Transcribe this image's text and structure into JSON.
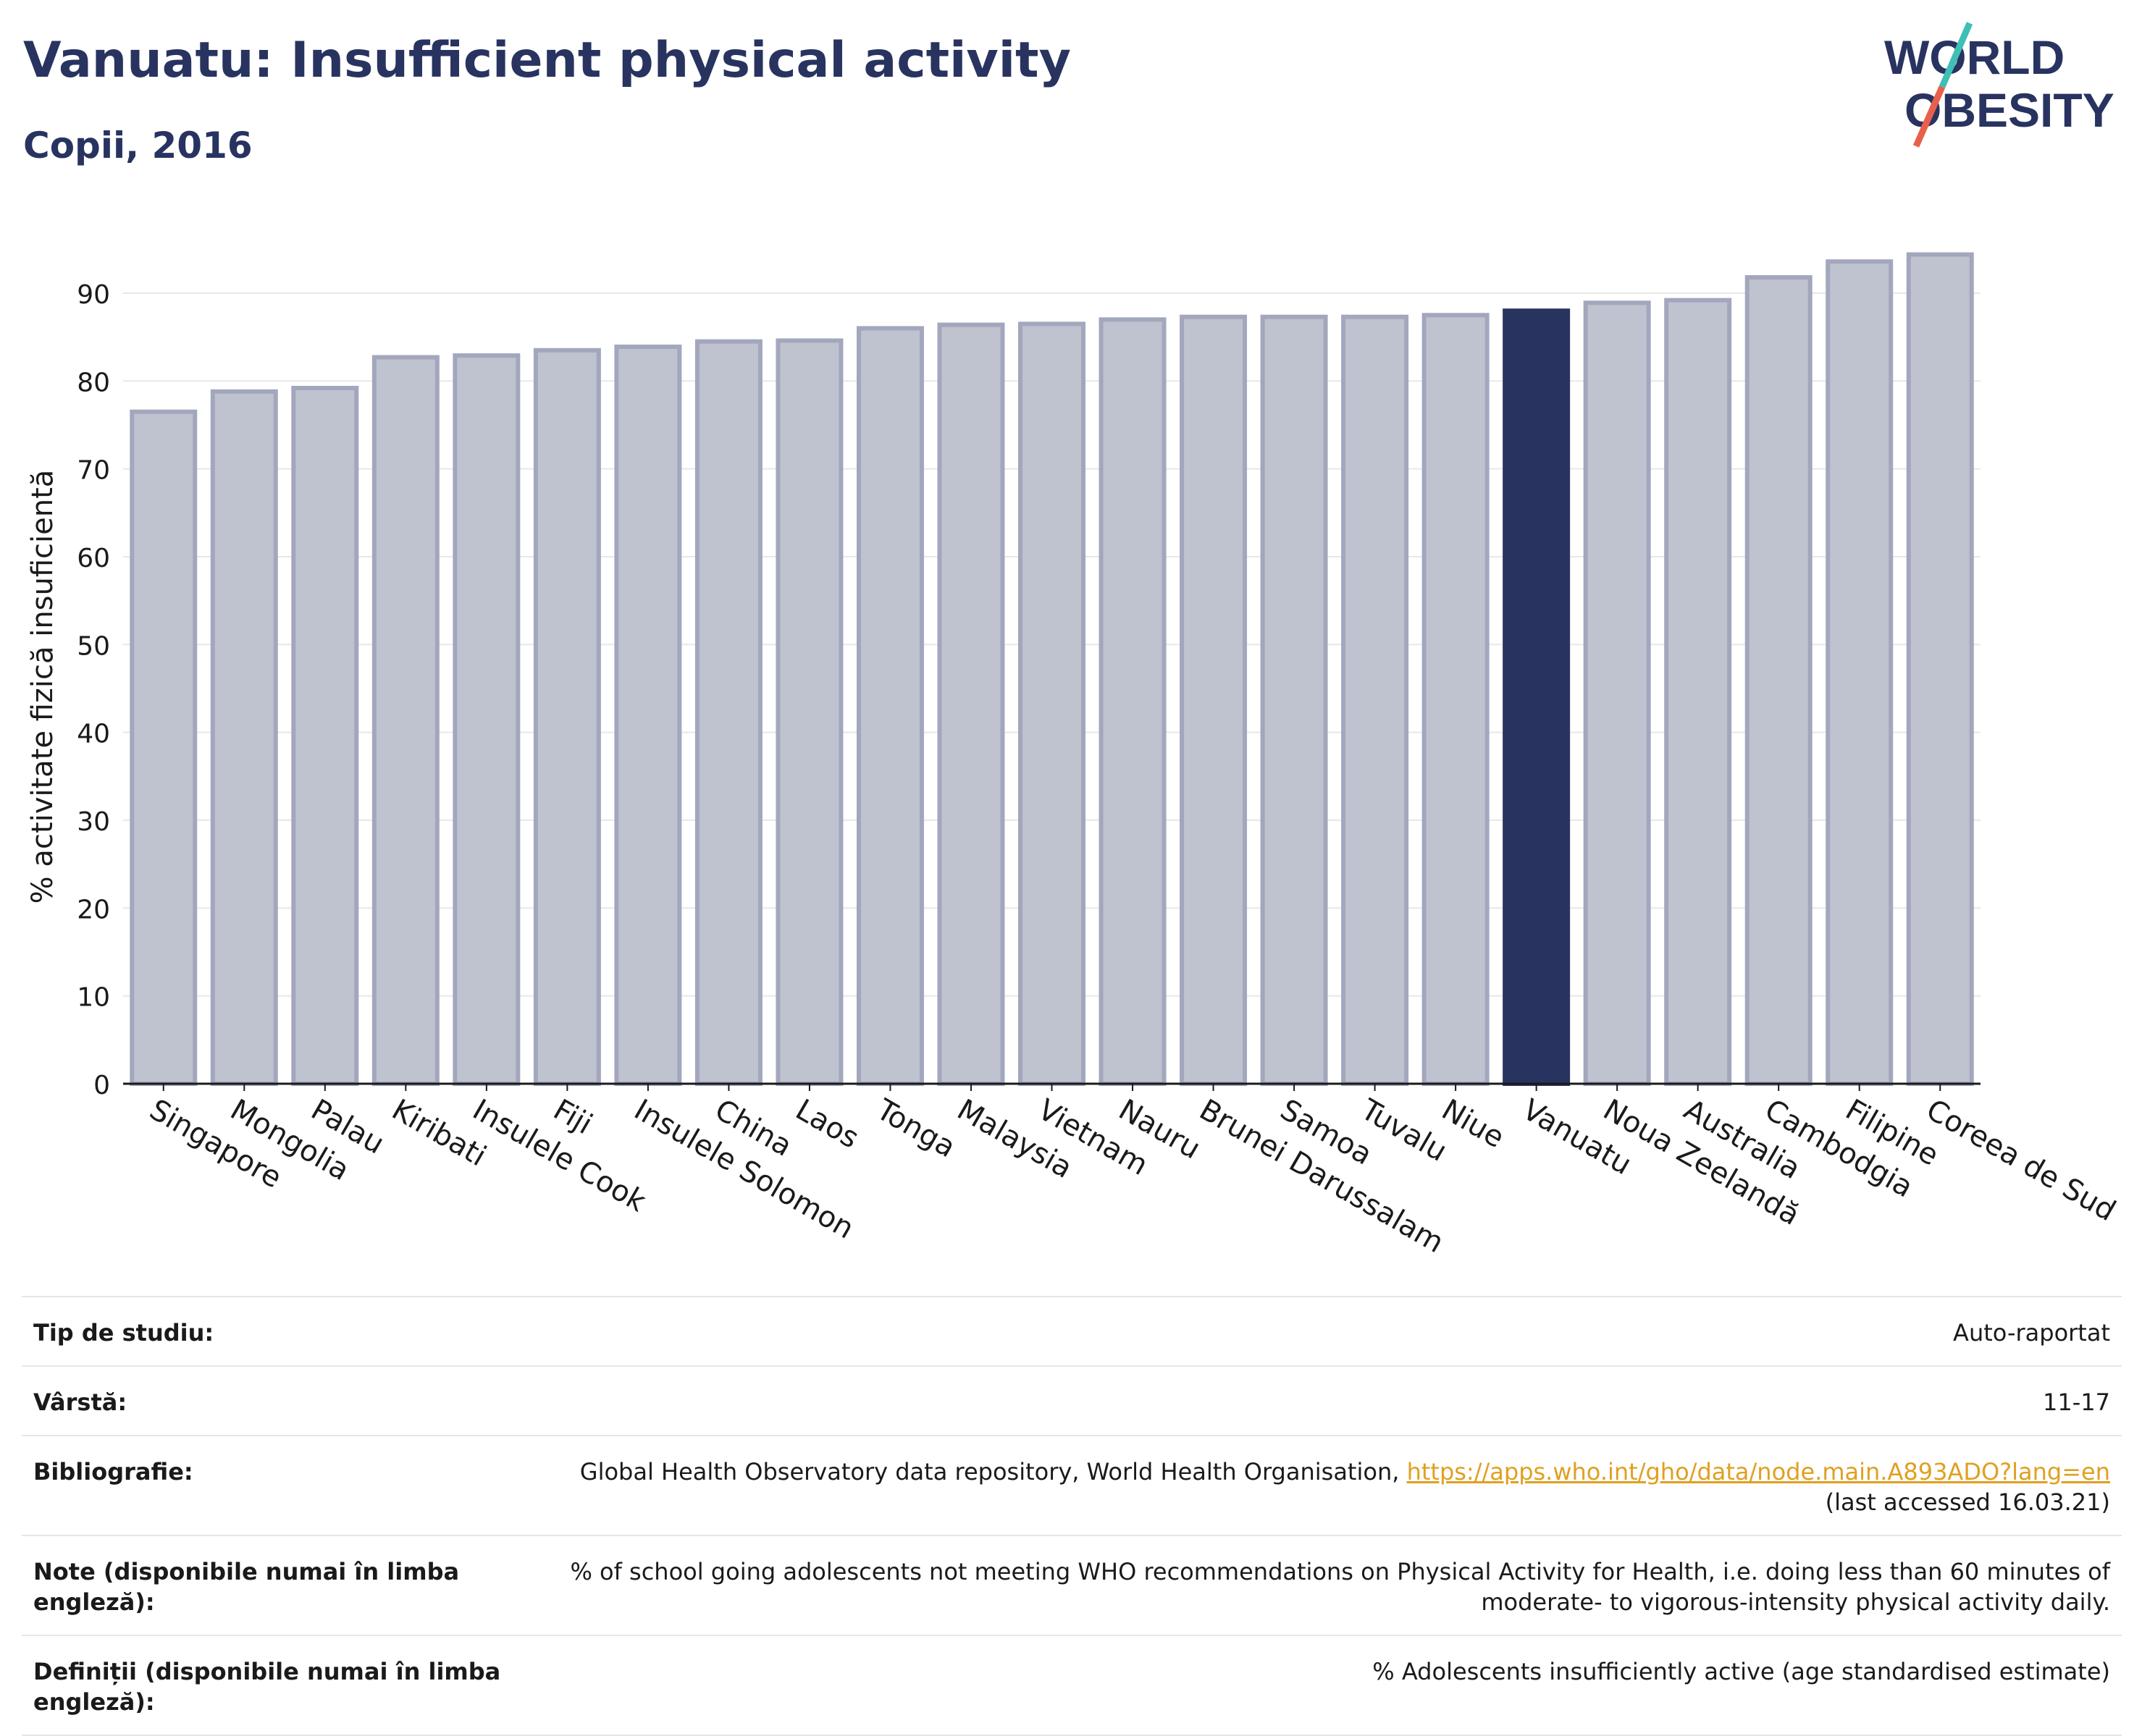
{
  "header": {
    "title": "Vanuatu: Insufficient physical activity",
    "subtitle": "Copii, 2016"
  },
  "logo": {
    "line1": "WORLD",
    "line2": "OBESITY",
    "colors": {
      "text": "#283360",
      "slash_top": "#3fbfb5",
      "slash_bottom": "#e8604c"
    }
  },
  "chart_data": {
    "type": "bar",
    "ylabel": "% activitate fizică insuficientă",
    "ylim": [
      0,
      97
    ],
    "yticks": [
      0,
      10,
      20,
      30,
      40,
      50,
      60,
      70,
      80,
      90
    ],
    "grid": true,
    "categories": [
      "Singapore",
      "Mongolia",
      "Palau",
      "Kiribati",
      "Insulele Cook",
      "Fiji",
      "Insulele Solomon",
      "China",
      "Laos",
      "Tonga",
      "Malaysia",
      "Vietnam",
      "Nauru",
      "Brunei Darussalam",
      "Samoa",
      "Tuvalu",
      "Niue",
      "Vanuatu",
      "Noua Zeelandă",
      "Australia",
      "Cambodgia",
      "Filipine",
      "Coreea de Sud"
    ],
    "values": [
      76.5,
      78.8,
      79.2,
      82.7,
      82.9,
      83.5,
      83.9,
      84.5,
      84.6,
      86.0,
      86.4,
      86.5,
      87.0,
      87.3,
      87.3,
      87.3,
      87.5,
      88.0,
      88.9,
      89.2,
      91.8,
      93.6,
      94.4
    ],
    "highlight": "Vanuatu",
    "colors": {
      "bar": "#bfc2cf",
      "bar_edge": "#a2a7bd",
      "highlight": "#283360"
    }
  },
  "meta": {
    "rows": [
      {
        "label": "Tip de studiu:",
        "value": "Auto-raportat"
      },
      {
        "label": "Vârstă:",
        "value": "11-17"
      },
      {
        "label": "Bibliografie:",
        "value": "Global Health Observatory data repository, World Health Organisation, ",
        "link": "https://apps.who.int/gho/data/node.main.A893ADO?lang=en",
        "value2": "(last accessed 16.03.21)"
      },
      {
        "label": "Note (disponibile numai în limba engleză):",
        "value": "% of school going adolescents not meeting WHO recommendations on Physical Activity for Health, i.e. doing less than 60 minutes of",
        "value2": "moderate- to vigorous-intensity physical activity daily."
      },
      {
        "label": "Definiții (disponibile numai în limba engleză):",
        "value": "% Adolescents insufficiently active (age standardised estimate)"
      }
    ]
  }
}
